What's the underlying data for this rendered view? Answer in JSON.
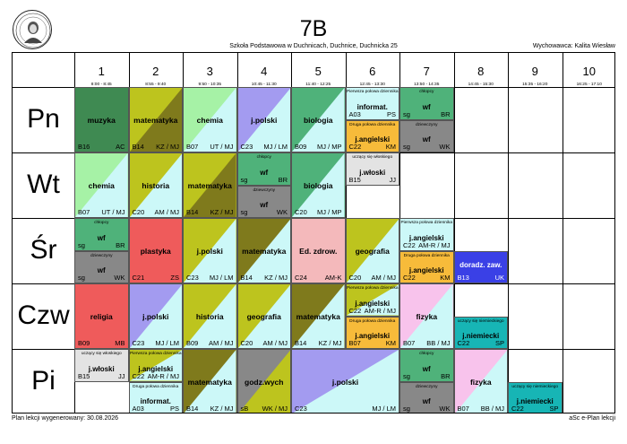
{
  "header": {
    "title": "7B",
    "subtitle": "Szkoła Podstawowa w Duchnicach, Duchnice, Duchnicka 25",
    "tutor": "Wychowawca: Kalita Wiesław"
  },
  "periods": [
    {
      "num": "1",
      "time": "8:00 - 8:45"
    },
    {
      "num": "2",
      "time": "8:55 - 9:40"
    },
    {
      "num": "3",
      "time": "9:50 - 10:35"
    },
    {
      "num": "4",
      "time": "10:45 - 11:30"
    },
    {
      "num": "5",
      "time": "11:40 - 12:25"
    },
    {
      "num": "6",
      "time": "12:45 - 13:30"
    },
    {
      "num": "7",
      "time": "13:50 - 14:35"
    },
    {
      "num": "8",
      "time": "14:45 - 15:30"
    },
    {
      "num": "9",
      "time": "15:35 - 16:20"
    },
    {
      "num": "10",
      "time": "16:25 - 17:10"
    }
  ],
  "days": [
    "Pn",
    "Wt",
    "Śr",
    "Czw",
    "Pi"
  ],
  "footer": {
    "left": "Plan lekcji wygenerowany: 30.08.2026",
    "right": "aSc e-Plan lekcji"
  },
  "colors": {
    "gdark": "#3f8a52",
    "lime": "#bdc41e",
    "olive": "#7f7a1c",
    "green": "#a6f2a6",
    "purple": "#a39bf0",
    "teal": "#4fb27a",
    "gray": "#888888",
    "lgray": "#e3e3e3",
    "lcyan": "#ccf8f8",
    "red": "#ef5b5b",
    "pink": "#f4b9bb",
    "orange": "#f7bb3a",
    "blue": "#3a40e6",
    "teal2": "#17b5b5",
    "lpink": "#f8c3ec",
    "white": "#ffffff"
  },
  "lessons": [
    {
      "d": 0,
      "p": 0,
      "s": 1,
      "parts": [
        {
          "f": 0,
          "h": 1,
          "bg": "gdark",
          "subject": "muzyka",
          "room": "B16",
          "teacher": "AC"
        }
      ]
    },
    {
      "d": 0,
      "p": 1,
      "s": 1,
      "parts": [
        {
          "f": 0,
          "h": 1,
          "bg": "lime",
          "bg2": "olive",
          "subject": "matematyka",
          "room": "B14",
          "teacher": "KZ / MJ"
        }
      ]
    },
    {
      "d": 0,
      "p": 2,
      "s": 1,
      "parts": [
        {
          "f": 0,
          "h": 1,
          "bg": "green",
          "bg2": "lcyan",
          "subject": "chemia",
          "room": "B07",
          "teacher": "UT / MJ"
        }
      ]
    },
    {
      "d": 0,
      "p": 3,
      "s": 1,
      "parts": [
        {
          "f": 0,
          "h": 1,
          "bg": "purple",
          "bg2": "lcyan",
          "subject": "j.polski",
          "room": "C23",
          "teacher": "MJ / LM"
        }
      ]
    },
    {
      "d": 0,
      "p": 4,
      "s": 1,
      "parts": [
        {
          "f": 0,
          "h": 1,
          "bg": "teal",
          "bg2": "lcyan",
          "subject": "biologia",
          "room": "B09",
          "teacher": "MJ / MP"
        }
      ]
    },
    {
      "d": 0,
      "p": 5,
      "s": 1,
      "parts": [
        {
          "f": 0,
          "h": 0.5,
          "bg": "lcyan",
          "group": "Pierwsza połowa dziennika",
          "subject": "informat.",
          "room": "A03",
          "teacher": "PS"
        },
        {
          "f": 0.5,
          "h": 0.5,
          "bg": "orange",
          "group": "Druga połowa dziennika",
          "subject": "j.angielski",
          "room": "C22",
          "teacher": "KM"
        }
      ]
    },
    {
      "d": 0,
      "p": 6,
      "s": 1,
      "parts": [
        {
          "f": 0,
          "h": 0.5,
          "bg": "teal",
          "group": "chłopcy",
          "subject": "wf",
          "room": "sg",
          "teacher": "BR"
        },
        {
          "f": 0.5,
          "h": 0.5,
          "bg": "gray",
          "group": "dziewczyny",
          "subject": "wf",
          "room": "sg",
          "teacher": "WK"
        }
      ]
    },
    {
      "d": 1,
      "p": 0,
      "s": 1,
      "parts": [
        {
          "f": 0,
          "h": 1,
          "bg": "green",
          "bg2": "lcyan",
          "subject": "chemia",
          "room": "B07",
          "teacher": "UT / MJ"
        }
      ]
    },
    {
      "d": 1,
      "p": 1,
      "s": 1,
      "parts": [
        {
          "f": 0,
          "h": 1,
          "bg": "lime",
          "bg2": "lcyan",
          "subject": "historia",
          "room": "C20",
          "teacher": "AM / MJ"
        }
      ]
    },
    {
      "d": 1,
      "p": 2,
      "s": 1,
      "parts": [
        {
          "f": 0,
          "h": 1,
          "bg": "lime",
          "bg2": "olive",
          "subject": "matematyka",
          "room": "B14",
          "teacher": "KZ / MJ"
        }
      ]
    },
    {
      "d": 1,
      "p": 3,
      "s": 1,
      "parts": [
        {
          "f": 0,
          "h": 0.5,
          "bg": "teal",
          "group": "chłopcy",
          "subject": "wf",
          "room": "sg",
          "teacher": "BR"
        },
        {
          "f": 0.5,
          "h": 0.5,
          "bg": "gray",
          "group": "dziewczyny",
          "subject": "wf",
          "room": "sg",
          "teacher": "WK"
        }
      ]
    },
    {
      "d": 1,
      "p": 4,
      "s": 1,
      "parts": [
        {
          "f": 0,
          "h": 1,
          "bg": "teal",
          "bg2": "lcyan",
          "subject": "biologia",
          "room": "C20",
          "teacher": "MJ / MP"
        }
      ]
    },
    {
      "d": 1,
      "p": 5,
      "s": 1,
      "parts": [
        {
          "f": 0,
          "h": 0.5,
          "bg": "lgray",
          "group": "uczący się włoskiego",
          "subject": "j.włoski",
          "room": "B15",
          "teacher": "JJ"
        }
      ]
    },
    {
      "d": 2,
      "p": 0,
      "s": 1,
      "parts": [
        {
          "f": 0,
          "h": 0.5,
          "bg": "teal",
          "group": "chłopcy",
          "subject": "wf",
          "room": "sg",
          "teacher": "BR"
        },
        {
          "f": 0.5,
          "h": 0.5,
          "bg": "gray",
          "group": "dziewczyny",
          "subject": "wf",
          "room": "sg",
          "teacher": "WK"
        }
      ]
    },
    {
      "d": 2,
      "p": 1,
      "s": 1,
      "parts": [
        {
          "f": 0,
          "h": 1,
          "bg": "red",
          "subject": "plastyka",
          "room": "C21",
          "teacher": "ZS"
        }
      ]
    },
    {
      "d": 2,
      "p": 2,
      "s": 1,
      "parts": [
        {
          "f": 0,
          "h": 1,
          "bg": "lime",
          "bg2": "lcyan",
          "subject": "j.polski",
          "room": "C23",
          "teacher": "MJ / LM"
        }
      ]
    },
    {
      "d": 2,
      "p": 3,
      "s": 1,
      "parts": [
        {
          "f": 0,
          "h": 1,
          "bg": "olive",
          "bg2": "lcyan",
          "subject": "matematyka",
          "room": "B14",
          "teacher": "KZ / MJ"
        }
      ]
    },
    {
      "d": 2,
      "p": 4,
      "s": 1,
      "parts": [
        {
          "f": 0,
          "h": 1,
          "bg": "pink",
          "subject": "Ed. zdrow.",
          "room": "C24",
          "teacher": "AM-K"
        }
      ]
    },
    {
      "d": 2,
      "p": 5,
      "s": 1,
      "parts": [
        {
          "f": 0,
          "h": 1,
          "bg": "lime",
          "bg2": "lcyan",
          "subject": "geografia",
          "room": "C20",
          "teacher": "AM / MJ"
        }
      ]
    },
    {
      "d": 2,
      "p": 6,
      "s": 1,
      "parts": [
        {
          "f": 0,
          "h": 0.5,
          "bg": "lcyan",
          "group": "Pierwsza połowa dziennika",
          "subject": "j.angielski",
          "room": "C22",
          "teacher": "AM-R / MJ"
        },
        {
          "f": 0.5,
          "h": 0.5,
          "bg": "orange",
          "group": "Druga połowa dziennika",
          "subject": "j.angielski",
          "room": "C22",
          "teacher": "KM"
        }
      ]
    },
    {
      "d": 2,
      "p": 7,
      "s": 1,
      "parts": [
        {
          "f": 0.5,
          "h": 0.5,
          "bg": "blue",
          "subject": "doradz. zaw.",
          "room": "B13",
          "teacher": "UK"
        }
      ]
    },
    {
      "d": 3,
      "p": 0,
      "s": 1,
      "parts": [
        {
          "f": 0,
          "h": 1,
          "bg": "red",
          "subject": "religia",
          "room": "B09",
          "teacher": "MB"
        }
      ]
    },
    {
      "d": 3,
      "p": 1,
      "s": 1,
      "parts": [
        {
          "f": 0,
          "h": 1,
          "bg": "purple",
          "bg2": "lcyan",
          "subject": "j.polski",
          "room": "C23",
          "teacher": "MJ / LM"
        }
      ]
    },
    {
      "d": 3,
      "p": 2,
      "s": 1,
      "parts": [
        {
          "f": 0,
          "h": 1,
          "bg": "lime",
          "bg2": "lcyan",
          "subject": "historia",
          "room": "B09",
          "teacher": "AM / MJ"
        }
      ]
    },
    {
      "d": 3,
      "p": 3,
      "s": 1,
      "parts": [
        {
          "f": 0,
          "h": 1,
          "bg": "lime",
          "bg2": "lcyan",
          "subject": "geografia",
          "room": "C20",
          "teacher": "AM / MJ"
        }
      ]
    },
    {
      "d": 3,
      "p": 4,
      "s": 1,
      "parts": [
        {
          "f": 0,
          "h": 1,
          "bg": "olive",
          "bg2": "lcyan",
          "subject": "matematyka",
          "room": "B14",
          "teacher": "KZ / MJ"
        }
      ]
    },
    {
      "d": 3,
      "p": 5,
      "s": 1,
      "parts": [
        {
          "f": 0,
          "h": 0.5,
          "bg": "lime",
          "bg2": "lcyan",
          "group": "Pierwsza połowa dziennika",
          "subject": "j.angielski",
          "room": "C22",
          "teacher": "AM-R / MJ"
        },
        {
          "f": 0.5,
          "h": 0.5,
          "bg": "orange",
          "group": "Druga połowa dziennika",
          "subject": "j.angielski",
          "room": "B07",
          "teacher": "KM"
        }
      ]
    },
    {
      "d": 3,
      "p": 6,
      "s": 1,
      "parts": [
        {
          "f": 0,
          "h": 1,
          "bg": "lpink",
          "bg2": "lcyan",
          "subject": "fizyka",
          "room": "B07",
          "teacher": "BB / MJ"
        }
      ]
    },
    {
      "d": 3,
      "p": 7,
      "s": 1,
      "parts": [
        {
          "f": 0.5,
          "h": 0.5,
          "bg": "teal2",
          "group": "uczący się niemieckiego",
          "subject": "j.niemiecki",
          "room": "C22",
          "teacher": "SP"
        }
      ]
    },
    {
      "d": 4,
      "p": 0,
      "s": 1,
      "parts": [
        {
          "f": 0,
          "h": 0.5,
          "bg": "lgray",
          "group": "uczący się włoskiego",
          "subject": "j.włoski",
          "room": "B15",
          "teacher": "JJ"
        }
      ]
    },
    {
      "d": 4,
      "p": 1,
      "s": 1,
      "parts": [
        {
          "f": 0,
          "h": 0.5,
          "bg": "lime",
          "bg2": "lcyan",
          "group": "Pierwsza połowa dziennika",
          "subject": "j.angielski",
          "room": "C22",
          "teacher": "AM-R / MJ"
        },
        {
          "f": 0.5,
          "h": 0.5,
          "bg": "lcyan",
          "group": "Druga połowa dziennika",
          "subject": "informat.",
          "room": "A03",
          "teacher": "PS"
        }
      ]
    },
    {
      "d": 4,
      "p": 2,
      "s": 1,
      "parts": [
        {
          "f": 0,
          "h": 1,
          "bg": "olive",
          "bg2": "lcyan",
          "subject": "matematyka",
          "room": "B14",
          "teacher": "KZ / MJ"
        }
      ]
    },
    {
      "d": 4,
      "p": 3,
      "s": 1,
      "parts": [
        {
          "f": 0,
          "h": 1,
          "bg": "gray",
          "bg2": "lime",
          "subject": "godz.wych",
          "room": "sB",
          "teacher": "WK / MJ"
        }
      ]
    },
    {
      "d": 4,
      "p": 4,
      "s": 2,
      "parts": [
        {
          "f": 0,
          "h": 1,
          "bg": "purple",
          "bg2": "lcyan",
          "subject": "j.polski",
          "room": "C23",
          "teacher": "MJ / LM"
        }
      ]
    },
    {
      "d": 4,
      "p": 6,
      "s": 1,
      "parts": [
        {
          "f": 0,
          "h": 0.5,
          "bg": "teal",
          "group": "chłopcy",
          "subject": "wf",
          "room": "sg",
          "teacher": "BR"
        },
        {
          "f": 0.5,
          "h": 0.5,
          "bg": "gray",
          "group": "dziewczyny",
          "subject": "wf",
          "room": "sg",
          "teacher": "WK"
        }
      ]
    },
    {
      "d": 4,
      "p": 7,
      "s": 1,
      "parts": [
        {
          "f": 0,
          "h": 1,
          "bg": "lpink",
          "bg2": "lcyan",
          "subject": "fizyka",
          "room": "B07",
          "teacher": "BB / MJ"
        }
      ]
    },
    {
      "d": 4,
      "p": 8,
      "s": 1,
      "parts": [
        {
          "f": 0.5,
          "h": 0.5,
          "bg": "teal2",
          "group": "uczący się niemieckiego",
          "subject": "j.niemiecki",
          "room": "C22",
          "teacher": "SP"
        }
      ]
    }
  ]
}
